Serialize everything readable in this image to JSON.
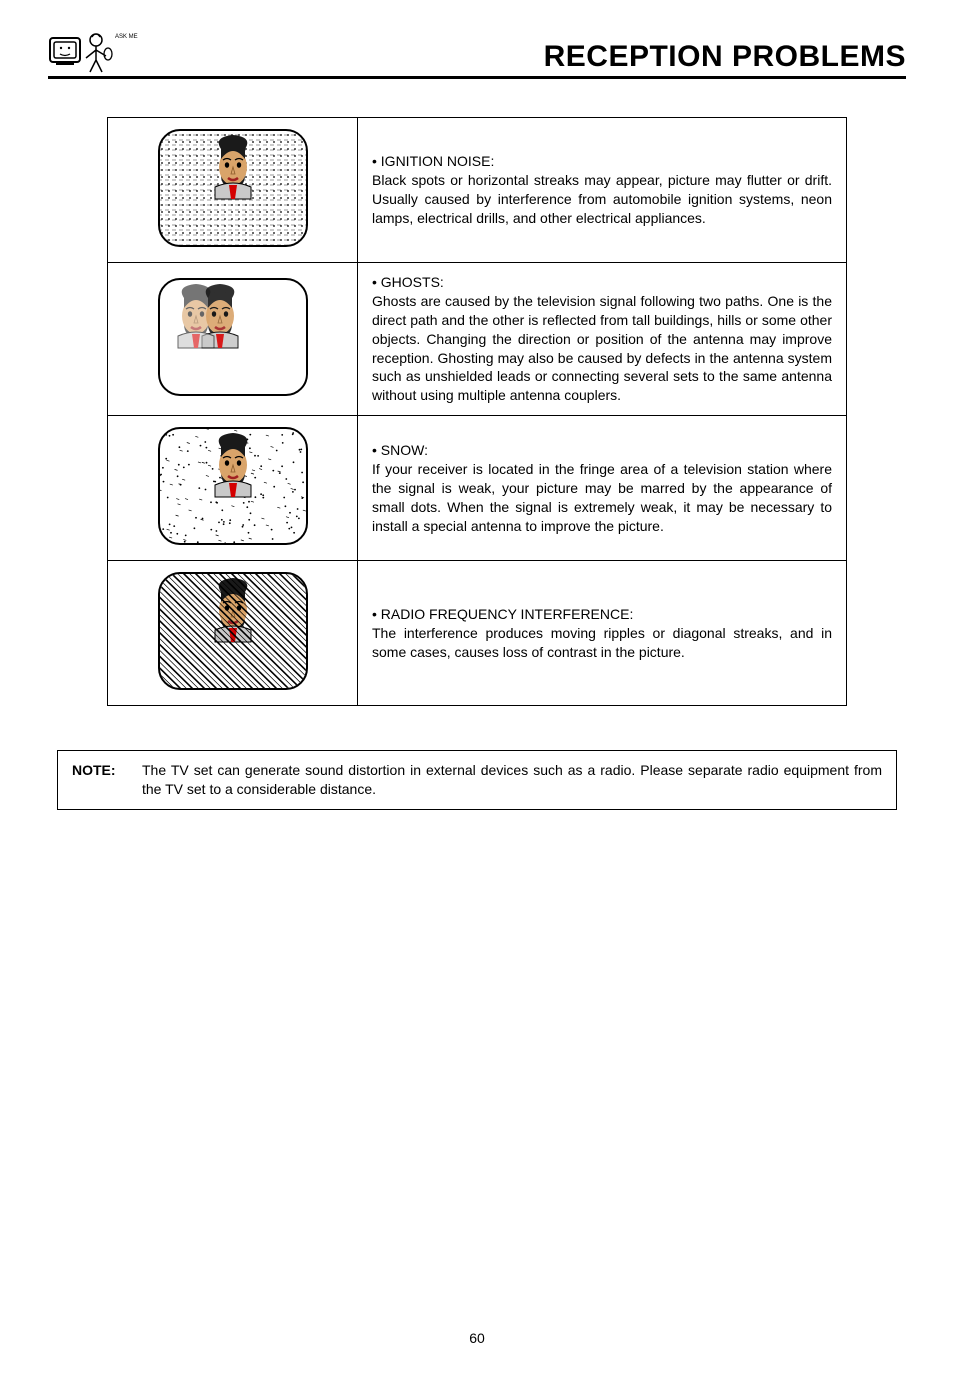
{
  "header": {
    "title": "RECEPTION PROBLEMS",
    "logo_label": "ASK ME!"
  },
  "problems": [
    {
      "title": "IGNITION NOISE:",
      "body": "Black spots or horizontal streaks may appear, picture may flutter or drift. Usually caused by interference from automobile ignition systems, neon lamps, electrical drills, and other electrical appliances.",
      "effect": "dots"
    },
    {
      "title": "GHOSTS:",
      "body": "Ghosts are caused by the television signal following two paths.  One is the direct path and the other is reflected from tall buildings, hills or some other objects.  Changing the direction or position of the antenna may improve reception. Ghosting may also be caused by defects in the antenna system such as unshielded leads or connecting several sets to the same antenna without using multiple antenna couplers.",
      "effect": "ghost"
    },
    {
      "title": "SNOW:",
      "body": "If your receiver is located in the fringe area of a television station where the signal is weak, your picture may be marred by the appearance of small dots.  When the signal is extremely weak, it may be necessary to install a special antenna to improve the picture.",
      "effect": "snow"
    },
    {
      "title": "RADIO FREQUENCY INTERFERENCE:",
      "body": "The interference produces moving ripples or diagonal streaks, and in some cases, causes loss of contrast in the picture.",
      "effect": "diagonal"
    }
  ],
  "note": {
    "label": "NOTE:",
    "text": "The TV set can generate sound distortion in external devices such as a radio.  Please separate radio equipment from the TV set to a considerable distance."
  },
  "page_number": "60",
  "colors": {
    "hair": "#1a1a1a",
    "skin": "#d9a46a",
    "collar": "#c9c9c9",
    "tie": "#d40000",
    "line": "#000000"
  }
}
